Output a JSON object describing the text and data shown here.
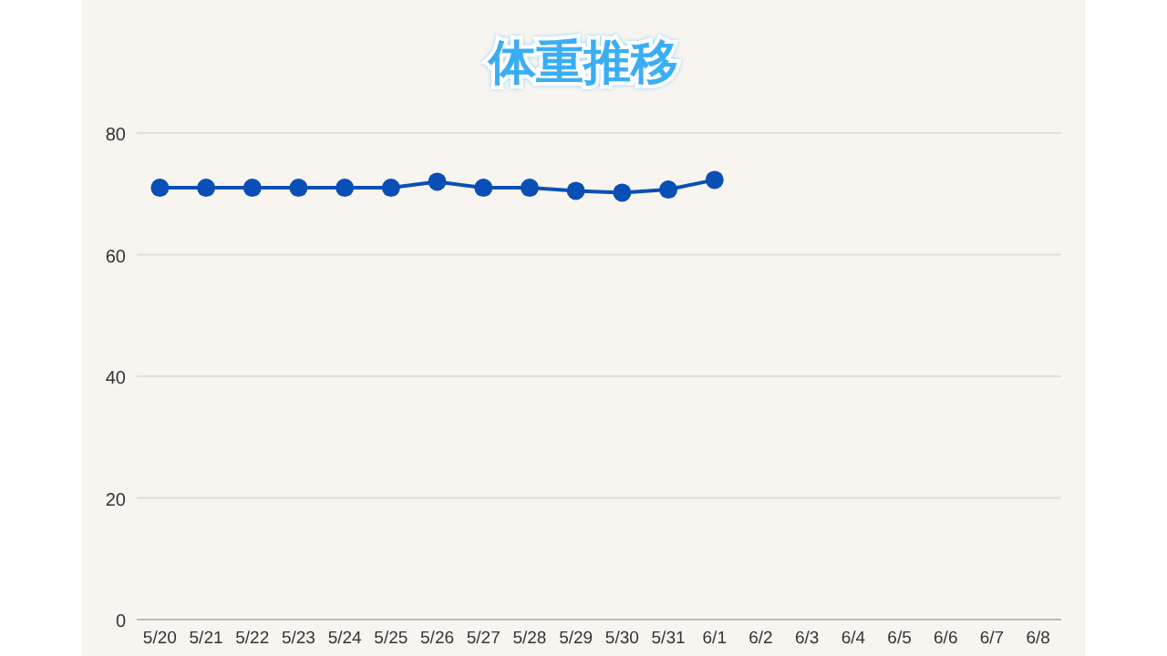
{
  "chart_data": {
    "type": "line",
    "title": "体重推移",
    "categories": [
      "5/20",
      "5/21",
      "5/22",
      "5/23",
      "5/24",
      "5/25",
      "5/26",
      "5/27",
      "5/28",
      "5/29",
      "5/30",
      "5/31",
      "6/1",
      "6/2",
      "6/3",
      "6/4",
      "6/5",
      "6/6",
      "6/7",
      "6/8"
    ],
    "series": [
      {
        "color": "#0a4fb5",
        "values": [
          71,
          71,
          71,
          71,
          71,
          71,
          72,
          71,
          71,
          70.5,
          70.2,
          70.7,
          72.3,
          null,
          null,
          null,
          null,
          null,
          null,
          null
        ]
      }
    ],
    "ylim": [
      0,
      80
    ],
    "yticks": [
      0,
      20,
      40,
      60,
      80
    ],
    "grid": "y",
    "marker": "circle",
    "line_style": "solid"
  }
}
